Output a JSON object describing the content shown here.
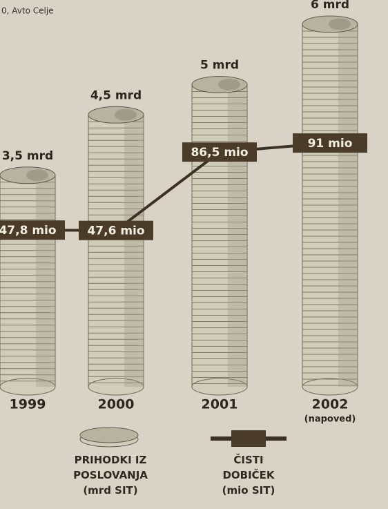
{
  "chart_data": {
    "type": "bar",
    "credit": "0, Avto Celje",
    "categories": [
      "1999",
      "2000",
      "2001",
      "2002"
    ],
    "annotation": "(napoved)",
    "ylim": [
      0,
      6
    ],
    "y2lim": [
      -30,
      150
    ],
    "series": [
      {
        "name": "PRIHODKI IZ\nPOSLOVANJA\n(mrd SIT)",
        "type": "bar",
        "color": "#d1cdbb",
        "values": [
          3.5,
          4.5,
          5,
          6
        ],
        "value_labels": [
          "3,5 mrd",
          "4,5 mrd",
          "5 mrd",
          "6 mrd"
        ]
      },
      {
        "name": "ČISTI\nDOBIČEK\n(mio SIT)",
        "type": "line",
        "axis": "y2",
        "color": "#3b3226",
        "values": [
          47.8,
          47.6,
          86.5,
          91
        ],
        "value_labels": [
          "47,8 mio",
          "47,6 mio",
          "86,5 mio",
          "91 mio"
        ]
      }
    ]
  }
}
